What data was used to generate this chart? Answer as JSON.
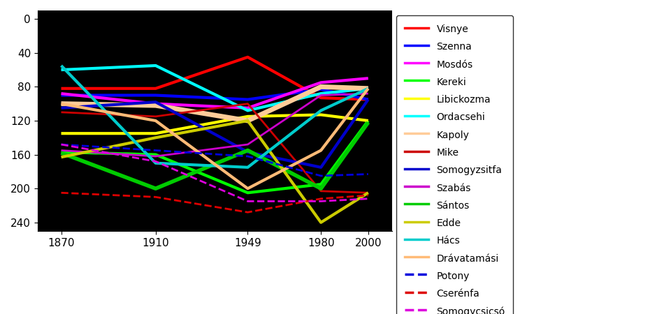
{
  "x": [
    1870,
    1910,
    1949,
    1980,
    2000
  ],
  "series": [
    {
      "name": "Visnye",
      "color": "#ff0000",
      "linestyle": "-",
      "linewidth": 3,
      "values": [
        82,
        82,
        45,
        93,
        95
      ]
    },
    {
      "name": "Szenna",
      "color": "#0000ff",
      "linestyle": "-",
      "linewidth": 3,
      "values": [
        90,
        90,
        95,
        83,
        95
      ]
    },
    {
      "name": "Mosdós",
      "color": "#ff00ff",
      "linestyle": "-",
      "linewidth": 3,
      "values": [
        88,
        100,
        105,
        75,
        70
      ]
    },
    {
      "name": "Kereki",
      "color": "#00ff00",
      "linestyle": "-",
      "linewidth": 3,
      "values": [
        157,
        160,
        205,
        195,
        120
      ]
    },
    {
      "name": "Libickozma",
      "color": "#ffff00",
      "linestyle": "-",
      "linewidth": 3,
      "values": [
        135,
        135,
        115,
        113,
        120
      ]
    },
    {
      "name": "Ordacsehi",
      "color": "#00ffff",
      "linestyle": "-",
      "linewidth": 3,
      "values": [
        60,
        55,
        108,
        88,
        82
      ]
    },
    {
      "name": "Kapoly",
      "color": "#ffcc99",
      "linestyle": "-",
      "linewidth": 5,
      "values": [
        100,
        102,
        120,
        80,
        82
      ]
    },
    {
      "name": "Mike",
      "color": "#cc0000",
      "linestyle": "-",
      "linewidth": 2,
      "values": [
        110,
        115,
        100,
        203,
        205
      ]
    },
    {
      "name": "Somogyzsitfa",
      "color": "#0000cc",
      "linestyle": "-",
      "linewidth": 3,
      "values": [
        105,
        98,
        157,
        175,
        95
      ]
    },
    {
      "name": "Szabás",
      "color": "#cc00cc",
      "linestyle": "-",
      "linewidth": 2,
      "values": [
        155,
        162,
        148,
        90,
        88
      ]
    },
    {
      "name": "Sántos",
      "color": "#00cc00",
      "linestyle": "-",
      "linewidth": 4,
      "values": [
        158,
        200,
        155,
        200,
        122
      ]
    },
    {
      "name": "Edde",
      "color": "#cccc00",
      "linestyle": "-",
      "linewidth": 3,
      "values": [
        163,
        140,
        120,
        240,
        205
      ]
    },
    {
      "name": "Hács",
      "color": "#00cccc",
      "linestyle": "-",
      "linewidth": 3,
      "values": [
        55,
        170,
        175,
        108,
        82
      ]
    },
    {
      "name": "Drávatamási",
      "color": "#ffbb77",
      "linestyle": "-",
      "linewidth": 3,
      "values": [
        100,
        120,
        200,
        155,
        82
      ]
    },
    {
      "name": "Potony",
      "color": "#0000dd",
      "linestyle": "--",
      "linewidth": 2,
      "values": [
        148,
        155,
        162,
        185,
        183
      ]
    },
    {
      "name": "Cserénfa",
      "color": "#dd0000",
      "linestyle": "--",
      "linewidth": 2,
      "values": [
        205,
        210,
        228,
        212,
        208
      ]
    },
    {
      "name": "Somogycsicsó",
      "color": "#dd00dd",
      "linestyle": "--",
      "linewidth": 2,
      "values": [
        148,
        168,
        215,
        215,
        212
      ]
    }
  ],
  "xlim": [
    1860,
    2010
  ],
  "ylim": [
    250,
    -10
  ],
  "yticks": [
    0,
    40,
    80,
    120,
    160,
    200,
    240
  ],
  "xticks": [
    1870,
    1910,
    1949,
    1980,
    2000
  ],
  "background_color": "#000000",
  "legend_background": "#ffffff",
  "title": "",
  "xlabel": "",
  "ylabel": ""
}
